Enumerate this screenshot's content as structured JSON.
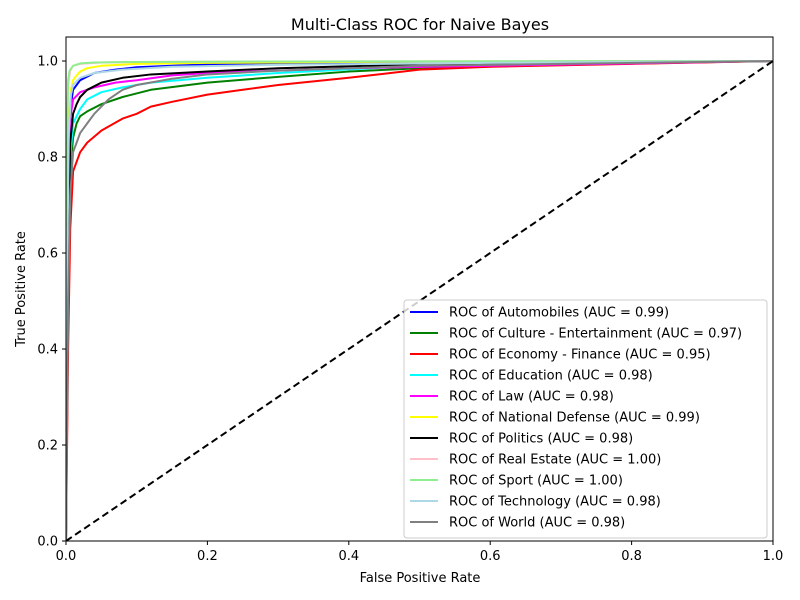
{
  "chart_data": {
    "type": "line",
    "title": "Multi-Class ROC for Naive Bayes",
    "xlabel": "False Positive Rate",
    "ylabel": "True Positive Rate",
    "xlim": [
      0.0,
      1.0
    ],
    "ylim": [
      0.0,
      1.05
    ],
    "xticks": [
      "0.0",
      "0.2",
      "0.4",
      "0.6",
      "0.8",
      "1.0"
    ],
    "yticks": [
      "0.0",
      "0.2",
      "0.4",
      "0.6",
      "0.8",
      "1.0"
    ],
    "legend_position": "lower-right",
    "diagonal": {
      "x": [
        0,
        1
      ],
      "y": [
        0,
        1
      ],
      "color": "#000000",
      "style": "dashed"
    },
    "series": [
      {
        "name": "ROC of Automobiles (AUC = 0.99)",
        "color": "#0000ff",
        "x": [
          0,
          0.002,
          0.005,
          0.008,
          0.01,
          0.02,
          0.04,
          0.07,
          0.1,
          0.15,
          0.2,
          0.3,
          0.5,
          0.7,
          1.0
        ],
        "y": [
          0,
          0.6,
          0.85,
          0.92,
          0.94,
          0.96,
          0.975,
          0.982,
          0.987,
          0.99,
          0.993,
          0.995,
          0.997,
          0.998,
          1.0
        ]
      },
      {
        "name": "ROC of Culture - Entertainment (AUC = 0.97)",
        "color": "#008000",
        "x": [
          0,
          0.002,
          0.005,
          0.01,
          0.015,
          0.02,
          0.03,
          0.05,
          0.08,
          0.12,
          0.2,
          0.3,
          0.4,
          0.5,
          0.7,
          1.0
        ],
        "y": [
          0,
          0.5,
          0.75,
          0.84,
          0.87,
          0.885,
          0.895,
          0.91,
          0.925,
          0.94,
          0.955,
          0.967,
          0.978,
          0.985,
          0.992,
          1.0
        ]
      },
      {
        "name": "ROC of Economy - Finance (AUC = 0.95)",
        "color": "#ff0000",
        "x": [
          0,
          0.003,
          0.006,
          0.01,
          0.015,
          0.02,
          0.03,
          0.05,
          0.08,
          0.1,
          0.12,
          0.15,
          0.2,
          0.25,
          0.3,
          0.4,
          0.5,
          0.6,
          0.8,
          1.0
        ],
        "y": [
          0,
          0.4,
          0.65,
          0.77,
          0.79,
          0.81,
          0.83,
          0.855,
          0.88,
          0.89,
          0.905,
          0.915,
          0.93,
          0.94,
          0.95,
          0.965,
          0.982,
          0.988,
          0.994,
          1.0
        ]
      },
      {
        "name": "ROC of Education (AUC = 0.98)",
        "color": "#00ffff",
        "x": [
          0,
          0.003,
          0.006,
          0.01,
          0.02,
          0.03,
          0.05,
          0.08,
          0.12,
          0.2,
          0.3,
          0.5,
          1.0
        ],
        "y": [
          0,
          0.55,
          0.8,
          0.87,
          0.9,
          0.92,
          0.935,
          0.945,
          0.955,
          0.965,
          0.975,
          0.99,
          1.0
        ]
      },
      {
        "name": "ROC of Law (AUC = 0.98)",
        "color": "#ff00ff",
        "x": [
          0,
          0.003,
          0.006,
          0.01,
          0.02,
          0.04,
          0.07,
          0.1,
          0.15,
          0.2,
          0.3,
          0.4,
          0.6,
          1.0
        ],
        "y": [
          0,
          0.7,
          0.88,
          0.92,
          0.935,
          0.945,
          0.955,
          0.96,
          0.97,
          0.975,
          0.98,
          0.985,
          0.99,
          1.0
        ]
      },
      {
        "name": "ROC of National Defense (AUC = 0.99)",
        "color": "#ffff00",
        "x": [
          0,
          0.002,
          0.004,
          0.007,
          0.01,
          0.015,
          0.02,
          0.03,
          0.05,
          0.1,
          0.2,
          0.4,
          1.0
        ],
        "y": [
          0,
          0.7,
          0.88,
          0.94,
          0.96,
          0.97,
          0.978,
          0.985,
          0.99,
          0.994,
          0.996,
          0.998,
          1.0
        ]
      },
      {
        "name": "ROC of Politics (AUC = 0.98)",
        "color": "#000000",
        "x": [
          0,
          0.003,
          0.006,
          0.01,
          0.015,
          0.02,
          0.03,
          0.05,
          0.08,
          0.12,
          0.2,
          0.3,
          0.5,
          1.0
        ],
        "y": [
          0,
          0.6,
          0.83,
          0.89,
          0.91,
          0.925,
          0.94,
          0.955,
          0.965,
          0.972,
          0.978,
          0.985,
          0.993,
          1.0
        ]
      },
      {
        "name": "ROC of Real Estate (AUC = 1.00)",
        "color": "#ffc0cb",
        "x": [
          0,
          0.001,
          0.003,
          0.006,
          0.01,
          0.02,
          0.05,
          0.1,
          0.3,
          1.0
        ],
        "y": [
          0,
          0.8,
          0.95,
          0.98,
          0.99,
          0.994,
          0.997,
          0.998,
          0.999,
          1.0
        ]
      },
      {
        "name": "ROC of Sport (AUC = 1.00)",
        "color": "#90ee90",
        "x": [
          0,
          0.001,
          0.003,
          0.005,
          0.01,
          0.02,
          0.04,
          0.1,
          0.3,
          1.0
        ],
        "y": [
          0,
          0.8,
          0.96,
          0.98,
          0.99,
          0.995,
          0.997,
          0.998,
          0.999,
          1.0
        ]
      },
      {
        "name": "ROC of Technology (AUC = 0.98)",
        "color": "#add8e6",
        "x": [
          0,
          0.002,
          0.004,
          0.007,
          0.01,
          0.02,
          0.04,
          0.08,
          0.15,
          0.3,
          0.6,
          1.0
        ],
        "y": [
          0,
          0.6,
          0.85,
          0.93,
          0.95,
          0.965,
          0.975,
          0.982,
          0.988,
          0.992,
          0.996,
          1.0
        ]
      },
      {
        "name": "ROC of World (AUC = 0.98)",
        "color": "#808080",
        "x": [
          0,
          0.003,
          0.006,
          0.01,
          0.015,
          0.02,
          0.03,
          0.04,
          0.06,
          0.08,
          0.1,
          0.15,
          0.2,
          0.3,
          0.5,
          1.0
        ],
        "y": [
          0,
          0.5,
          0.72,
          0.81,
          0.83,
          0.85,
          0.87,
          0.89,
          0.92,
          0.94,
          0.95,
          0.963,
          0.972,
          0.98,
          0.99,
          1.0
        ]
      }
    ]
  }
}
